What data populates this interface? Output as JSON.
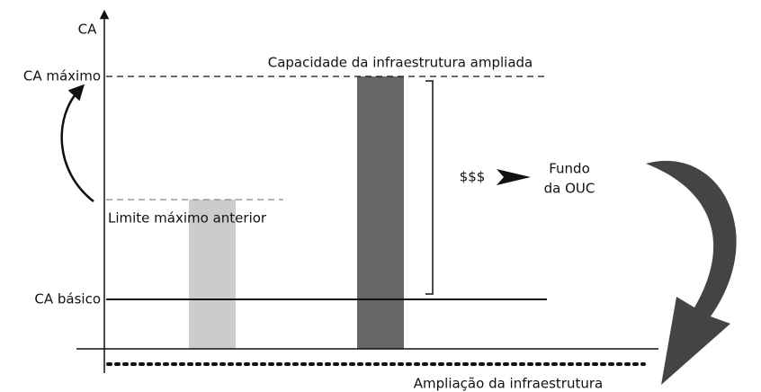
{
  "labels": {
    "y_axis": "CA",
    "ca_max": "CA máximo",
    "ca_basic": "CA básico",
    "expanded_capacity": "Capacidade da infraestrutura ampliada",
    "previous_limit": "Limite máximo anterior",
    "money": "$$$",
    "fund_line1": "Fundo",
    "fund_line2": "da OUC",
    "infrastructure": "Ampliação da infraestrutura"
  }
}
